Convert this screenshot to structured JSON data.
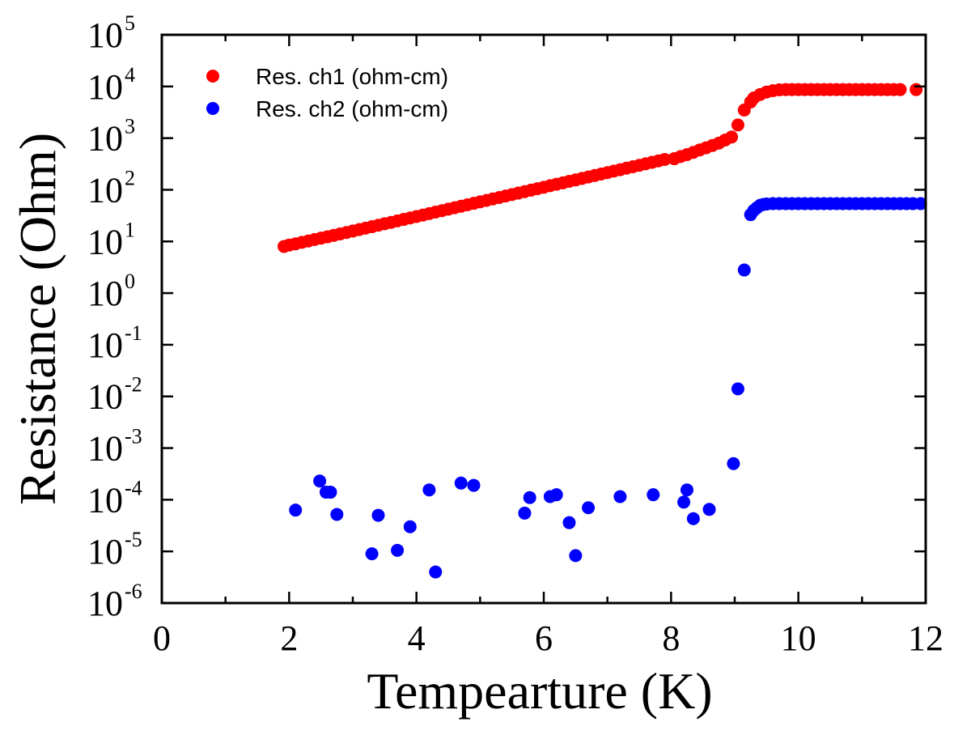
{
  "chart_data": {
    "type": "scatter",
    "xlabel": "Tempearture (K)",
    "ylabel": "Resistance (Ohm)",
    "xlim": [
      0,
      12
    ],
    "ylim": [
      1e-06,
      100000.0
    ],
    "yscale": "log",
    "x_ticks": [
      {
        "value": 0,
        "label": "0"
      },
      {
        "value": 2,
        "label": "2"
      },
      {
        "value": 4,
        "label": "4"
      },
      {
        "value": 6,
        "label": "6"
      },
      {
        "value": 8,
        "label": "8"
      },
      {
        "value": 10,
        "label": "10"
      },
      {
        "value": 12,
        "label": "12"
      }
    ],
    "y_ticks": [
      {
        "value": 1e-06,
        "base": "10",
        "exp": "-6"
      },
      {
        "value": 1e-05,
        "base": "10",
        "exp": "-5"
      },
      {
        "value": 0.0001,
        "base": "10",
        "exp": "-4"
      },
      {
        "value": 0.001,
        "base": "10",
        "exp": "-3"
      },
      {
        "value": 0.01,
        "base": "10",
        "exp": "-2"
      },
      {
        "value": 0.1,
        "base": "10",
        "exp": "-1"
      },
      {
        "value": 1,
        "base": "10",
        "exp": "0"
      },
      {
        "value": 10,
        "base": "10",
        "exp": "1"
      },
      {
        "value": 100,
        "base": "10",
        "exp": "2"
      },
      {
        "value": 1000,
        "base": "10",
        "exp": "3"
      },
      {
        "value": 10000,
        "base": "10",
        "exp": "4"
      },
      {
        "value": 100000,
        "base": "10",
        "exp": "5"
      }
    ],
    "grid": false,
    "legend_position": "top-left",
    "series": [
      {
        "name": "Res. ch1 (ohm-cm)",
        "color": "#ff0000",
        "x": [
          1.92,
          2.0,
          2.1,
          2.2,
          2.3,
          2.4,
          2.5,
          2.6,
          2.7,
          2.8,
          2.9,
          3.0,
          3.1,
          3.2,
          3.3,
          3.4,
          3.5,
          3.6,
          3.7,
          3.8,
          3.9,
          4.0,
          4.1,
          4.2,
          4.3,
          4.4,
          4.5,
          4.6,
          4.7,
          4.8,
          4.9,
          5.0,
          5.1,
          5.2,
          5.3,
          5.4,
          5.5,
          5.6,
          5.7,
          5.8,
          5.9,
          6.0,
          6.1,
          6.2,
          6.3,
          6.4,
          6.5,
          6.6,
          6.7,
          6.8,
          6.9,
          7.0,
          7.1,
          7.2,
          7.3,
          7.4,
          7.5,
          7.6,
          7.7,
          7.8,
          7.9,
          8.05,
          8.15,
          8.25,
          8.35,
          8.45,
          8.55,
          8.65,
          8.75,
          8.85,
          8.95,
          9.05,
          9.15,
          9.25,
          9.3,
          9.4,
          9.5,
          9.6,
          9.7,
          9.8,
          9.9,
          10.0,
          10.1,
          10.2,
          10.3,
          10.4,
          10.5,
          10.6,
          10.7,
          10.8,
          10.9,
          11.0,
          11.1,
          11.2,
          11.3,
          11.4,
          11.5,
          11.6,
          11.85
        ],
        "y": [
          8.0,
          8.5,
          9.0,
          9.6,
          10.2,
          10.9,
          11.6,
          12.3,
          13.1,
          14.0,
          14.9,
          15.9,
          17.0,
          18.1,
          19.3,
          20.6,
          22.0,
          23.4,
          25.0,
          26.7,
          28.5,
          30.4,
          32.4,
          34.6,
          37.0,
          39.5,
          42.2,
          45.0,
          48.0,
          51.3,
          54.7,
          58.4,
          62.3,
          66.5,
          71.0,
          75.8,
          80.9,
          86.3,
          92.1,
          98.3,
          105,
          112,
          120,
          128,
          136,
          146,
          155,
          166,
          177,
          189,
          202,
          215,
          230,
          245,
          262,
          279,
          298,
          318,
          340,
          363,
          387,
          400,
          440,
          480,
          530,
          590,
          650,
          720,
          800,
          920,
          1050,
          1800,
          3500,
          5000,
          6000,
          7000,
          7800,
          8300,
          8600,
          8700,
          8700,
          8700,
          8700,
          8700,
          8700,
          8700,
          8700,
          8700,
          8700,
          8700,
          8700,
          8700,
          8700,
          8700,
          8700,
          8700,
          8700,
          8700,
          8700
        ]
      },
      {
        "name": "Res. ch2 (ohm-cm)",
        "color": "#0000ff",
        "x": [
          2.1,
          2.48,
          2.58,
          2.65,
          2.75,
          3.3,
          3.4,
          3.7,
          3.9,
          4.2,
          4.3,
          4.7,
          4.9,
          5.7,
          5.78,
          6.1,
          6.2,
          6.4,
          6.5,
          6.7,
          7.2,
          7.72,
          8.2,
          8.25,
          8.35,
          8.6,
          8.98,
          9.05,
          9.15,
          9.25,
          9.3,
          9.35,
          9.4,
          9.45,
          9.5,
          9.6,
          9.7,
          9.8,
          9.9,
          10.0,
          10.1,
          10.2,
          10.3,
          10.4,
          10.5,
          10.6,
          10.7,
          10.8,
          10.9,
          11.0,
          11.1,
          11.2,
          11.3,
          11.4,
          11.5,
          11.6,
          11.7,
          11.8,
          11.92
        ],
        "y": [
          6.3e-05,
          0.00023,
          0.00014,
          0.00014,
          5.2e-05,
          9e-06,
          5e-05,
          1.05e-05,
          3e-05,
          0.000155,
          4e-06,
          0.00021,
          0.00019,
          5.5e-05,
          0.00011,
          0.000115,
          0.000125,
          3.6e-05,
          8.3e-06,
          7e-05,
          0.000115,
          0.000125,
          9e-05,
          0.000155,
          4.3e-05,
          6.5e-05,
          0.0005,
          0.014,
          2.8,
          33,
          40,
          45,
          50,
          52,
          53,
          54,
          54,
          54,
          54,
          54,
          54,
          54,
          54,
          54,
          54,
          54,
          54,
          54,
          54,
          54,
          54,
          54,
          54,
          54,
          54,
          54,
          54,
          54,
          54
        ]
      }
    ]
  }
}
